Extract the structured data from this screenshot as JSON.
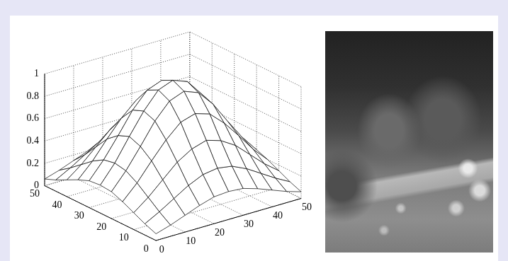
{
  "chart_data": {
    "type": "surface",
    "x": [
      0,
      5,
      10,
      15,
      20,
      25,
      30,
      35,
      40,
      45,
      50
    ],
    "y": [
      0,
      5,
      10,
      15,
      20,
      25,
      30,
      35,
      40,
      45,
      50
    ],
    "z": [
      [
        0.06,
        0.1,
        0.15,
        0.2,
        0.24,
        0.25,
        0.24,
        0.2,
        0.15,
        0.1,
        0.06
      ],
      [
        0.1,
        0.17,
        0.25,
        0.33,
        0.39,
        0.41,
        0.39,
        0.33,
        0.25,
        0.17,
        0.1
      ],
      [
        0.15,
        0.25,
        0.37,
        0.49,
        0.57,
        0.61,
        0.57,
        0.49,
        0.37,
        0.25,
        0.15
      ],
      [
        0.2,
        0.33,
        0.49,
        0.64,
        0.76,
        0.8,
        0.76,
        0.64,
        0.49,
        0.33,
        0.2
      ],
      [
        0.24,
        0.39,
        0.57,
        0.76,
        0.9,
        0.95,
        0.9,
        0.76,
        0.57,
        0.39,
        0.24
      ],
      [
        0.25,
        0.41,
        0.61,
        0.8,
        0.95,
        1,
        0.95,
        0.8,
        0.61,
        0.41,
        0.25
      ],
      [
        0.24,
        0.39,
        0.57,
        0.76,
        0.9,
        0.95,
        0.9,
        0.76,
        0.57,
        0.39,
        0.24
      ],
      [
        0.2,
        0.33,
        0.49,
        0.64,
        0.76,
        0.8,
        0.76,
        0.64,
        0.49,
        0.33,
        0.2
      ],
      [
        0.15,
        0.25,
        0.37,
        0.49,
        0.57,
        0.61,
        0.57,
        0.49,
        0.37,
        0.25,
        0.15
      ],
      [
        0.1,
        0.17,
        0.25,
        0.33,
        0.39,
        0.41,
        0.39,
        0.33,
        0.25,
        0.17,
        0.1
      ],
      [
        0.06,
        0.1,
        0.15,
        0.2,
        0.24,
        0.25,
        0.24,
        0.2,
        0.15,
        0.1,
        0.06
      ]
    ],
    "xlim": [
      0,
      50
    ],
    "ylim": [
      0,
      50
    ],
    "zlim": [
      0,
      1
    ],
    "xticks": [
      0,
      10,
      20,
      30,
      40,
      50
    ],
    "yticks": [
      0,
      10,
      20,
      30,
      40,
      50
    ],
    "zticks": [
      0,
      0.2,
      0.4,
      0.6,
      0.8,
      1
    ],
    "grid": true,
    "color": "#000000"
  }
}
